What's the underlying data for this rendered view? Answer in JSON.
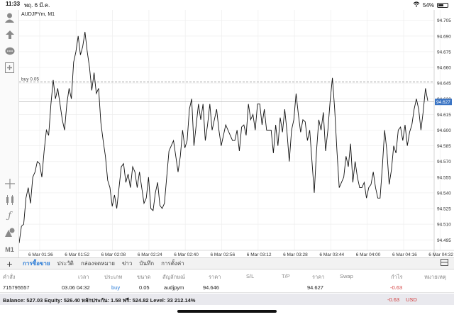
{
  "status": {
    "time": "11:33",
    "date": "พฤ. 6 มี.ค.",
    "battery": "54%",
    "battery_level": 0.54
  },
  "chart_data": {
    "type": "line",
    "title": "AUDJPYm, M1",
    "xlabels": [
      "6 Mar 01:36",
      "6 Mar 01:52",
      "6 Mar 02:08",
      "6 Mar 02:24",
      "6 Mar 02:40",
      "6 Mar 02:56",
      "6 Mar 03:12",
      "6 Mar 03:28",
      "6 Mar 03:44",
      "6 Mar 04:00",
      "6 Mar 04:16",
      "6 Mar 04:32"
    ],
    "yticks": [
      "94.705",
      "94.690",
      "94.675",
      "94.660",
      "94.645",
      "94.630",
      "94.615",
      "94.600",
      "94.585",
      "94.570",
      "94.555",
      "94.540",
      "94.525",
      "94.510",
      "94.495"
    ],
    "ylim": [
      94.485,
      94.715
    ],
    "order_line": {
      "label": "buy 0.05",
      "price": 94.646
    },
    "current_price": {
      "label": "94.627",
      "value": 94.627
    },
    "values": [
      94.492,
      94.508,
      94.51,
      94.535,
      94.545,
      94.53,
      94.555,
      94.56,
      94.57,
      94.568,
      94.555,
      94.58,
      94.6,
      94.595,
      94.625,
      94.648,
      94.63,
      94.64,
      94.625,
      94.61,
      94.6,
      94.625,
      94.64,
      94.63,
      94.665,
      94.675,
      94.69,
      94.672,
      94.68,
      94.694,
      94.675,
      94.66,
      94.638,
      94.655,
      94.635,
      94.64,
      94.607,
      94.59,
      94.575,
      94.552,
      94.545,
      94.527,
      94.538,
      94.525,
      94.545,
      94.565,
      94.568,
      94.55,
      94.558,
      94.545,
      94.565,
      94.56,
      94.545,
      94.56,
      94.545,
      94.53,
      94.535,
      94.555,
      94.525,
      94.523,
      94.54,
      94.55,
      94.528,
      94.525,
      94.53,
      94.555,
      94.58,
      94.585,
      94.59,
      94.575,
      94.56,
      94.575,
      94.6,
      94.583,
      94.59,
      94.62,
      94.63,
      94.585,
      94.605,
      94.625,
      94.61,
      94.625,
      94.59,
      94.605,
      94.625,
      94.6,
      94.61,
      94.62,
      94.6,
      94.585,
      94.595,
      94.605,
      94.6,
      94.595,
      94.59,
      94.59,
      94.6,
      94.58,
      94.603,
      94.605,
      94.595,
      94.625,
      94.61,
      94.615,
      94.6,
      94.625,
      94.625,
      94.605,
      94.62,
      94.6,
      94.6,
      94.6,
      94.578,
      94.605,
      94.585,
      94.612,
      94.598,
      94.62,
      94.598,
      94.57,
      94.6,
      94.61,
      94.635,
      94.615,
      94.598,
      94.61,
      94.608,
      94.59,
      94.6,
      94.57,
      94.54,
      94.58,
      94.61,
      94.6,
      94.617,
      94.58,
      94.6,
      94.628,
      94.65,
      94.62,
      94.58,
      94.545,
      94.55,
      94.555,
      94.575,
      94.565,
      94.587,
      94.55,
      94.57,
      94.555,
      94.545,
      94.545,
      94.55,
      94.535,
      94.545,
      94.548,
      94.56,
      94.545,
      94.535,
      94.535,
      94.565,
      94.6,
      94.58,
      94.548,
      94.562,
      94.585,
      94.578,
      94.6,
      94.603,
      94.59,
      94.605,
      94.585,
      94.598,
      94.605,
      94.62,
      94.63,
      94.62,
      94.6,
      94.618,
      94.64,
      94.628
    ]
  },
  "tabs": [
    "การซื้อขาย",
    "ประวัติ",
    "กล่องจดหมาย",
    "ข่าว",
    "บันทึก",
    "การตั้งค่า"
  ],
  "table": {
    "headers": [
      "คำสั่ง",
      "เวลา",
      "ประเภท",
      "ขนาด",
      "สัญลักษณ์",
      "ราคา",
      "S/L",
      "T/P",
      "ราคา",
      "Swap",
      "กำไร",
      "หมายเหตุ"
    ],
    "row": {
      "order": "715795557",
      "time": "03.06 04:32",
      "type": "buy",
      "size": "0.05",
      "symbol": "audjpym",
      "price": "94.646",
      "current": "94.627",
      "profit": "-0.63"
    }
  },
  "footer": {
    "summary": "Balance: 527.03 Equity: 526.40 หลักประกัน: 1.58 ฟรี: 524.82 Level: 33 212.14%",
    "total": "-0.63",
    "currency": "USD"
  },
  "colors": {
    "accent": "#2a7bd6",
    "loss": "#d23b3b",
    "price_tag": "#3a74c4"
  }
}
